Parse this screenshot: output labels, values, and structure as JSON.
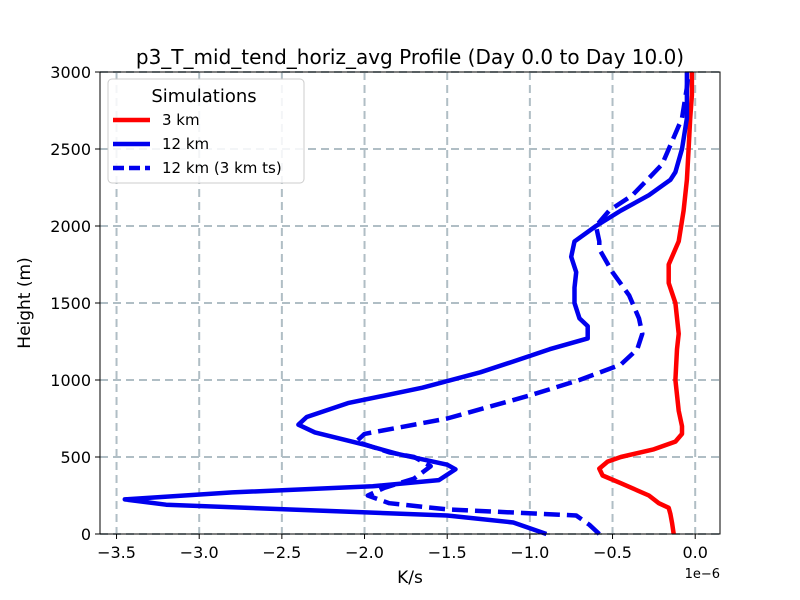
{
  "chart_data": {
    "type": "line",
    "title": "p3_T_mid_tend_horiz_avg Profile (Day 0.0 to Day 10.0)",
    "xlabel": "K/s",
    "ylabel": "Height (m)",
    "x_scale_label": "1e−6",
    "xlim": [
      -3.6,
      0.15
    ],
    "ylim": [
      0,
      3000
    ],
    "xticks": [
      -3.5,
      -3.0,
      -2.5,
      -2.0,
      -1.5,
      -1.0,
      -0.5,
      0.0
    ],
    "xtick_labels": [
      "−3.5",
      "−3.0",
      "−2.5",
      "−2.0",
      "−1.5",
      "−1.0",
      "−0.5",
      "0.0"
    ],
    "yticks": [
      0,
      500,
      1000,
      1500,
      2000,
      2500,
      3000
    ],
    "ytick_labels": [
      "0",
      "500",
      "1000",
      "1500",
      "2000",
      "2500",
      "3000"
    ],
    "grid": true,
    "legend": {
      "title": "Simulations",
      "position": "upper-left"
    },
    "series": [
      {
        "name": "3 km",
        "color": "#ff0000",
        "style": "solid",
        "points": [
          [
            -0.13,
            0
          ],
          [
            -0.14,
            70
          ],
          [
            -0.15,
            130
          ],
          [
            -0.16,
            170
          ],
          [
            -0.22,
            200
          ],
          [
            -0.28,
            250
          ],
          [
            -0.45,
            330
          ],
          [
            -0.56,
            380
          ],
          [
            -0.58,
            425
          ],
          [
            -0.53,
            470
          ],
          [
            -0.45,
            500
          ],
          [
            -0.25,
            550
          ],
          [
            -0.12,
            600
          ],
          [
            -0.08,
            650
          ],
          [
            -0.08,
            700
          ],
          [
            -0.1,
            800
          ],
          [
            -0.12,
            1000
          ],
          [
            -0.11,
            1200
          ],
          [
            -0.1,
            1300
          ],
          [
            -0.12,
            1500
          ],
          [
            -0.16,
            1630
          ],
          [
            -0.16,
            1750
          ],
          [
            -0.1,
            1900
          ],
          [
            -0.07,
            2100
          ],
          [
            -0.05,
            2300
          ],
          [
            -0.04,
            2500
          ],
          [
            -0.03,
            2700
          ],
          [
            -0.02,
            2850
          ],
          [
            -0.02,
            3000
          ]
        ]
      },
      {
        "name": "12 km",
        "color": "#0000ee",
        "style": "solid",
        "points": [
          [
            -0.9,
            0
          ],
          [
            -1.1,
            75
          ],
          [
            -1.5,
            120
          ],
          [
            -3.2,
            190
          ],
          [
            -3.45,
            225
          ],
          [
            -2.8,
            270
          ],
          [
            -1.95,
            310
          ],
          [
            -1.55,
            350
          ],
          [
            -1.45,
            420
          ],
          [
            -1.5,
            450
          ],
          [
            -1.8,
            520
          ],
          [
            -2.0,
            580
          ],
          [
            -2.3,
            660
          ],
          [
            -2.4,
            710
          ],
          [
            -2.35,
            760
          ],
          [
            -2.1,
            850
          ],
          [
            -1.65,
            950
          ],
          [
            -1.3,
            1050
          ],
          [
            -1.1,
            1120
          ],
          [
            -0.88,
            1200
          ],
          [
            -0.65,
            1270
          ],
          [
            -0.65,
            1350
          ],
          [
            -0.7,
            1400
          ],
          [
            -0.73,
            1500
          ],
          [
            -0.73,
            1600
          ],
          [
            -0.72,
            1700
          ],
          [
            -0.75,
            1800
          ],
          [
            -0.73,
            1900
          ],
          [
            -0.6,
            2000
          ],
          [
            -0.45,
            2100
          ],
          [
            -0.28,
            2200
          ],
          [
            -0.15,
            2300
          ],
          [
            -0.12,
            2350
          ],
          [
            -0.08,
            2500
          ],
          [
            -0.05,
            2700
          ],
          [
            -0.05,
            3000
          ]
        ]
      },
      {
        "name": "12 km (3 km ts)",
        "color": "#0000ee",
        "style": "dashed",
        "points": [
          [
            -0.58,
            0
          ],
          [
            -0.64,
            60
          ],
          [
            -0.72,
            120
          ],
          [
            -1.5,
            160
          ],
          [
            -1.85,
            200
          ],
          [
            -1.98,
            250
          ],
          [
            -1.88,
            300
          ],
          [
            -1.7,
            360
          ],
          [
            -1.6,
            440
          ],
          [
            -1.7,
            500
          ],
          [
            -1.85,
            530
          ],
          [
            -2.05,
            600
          ],
          [
            -2.0,
            650
          ],
          [
            -1.5,
            750
          ],
          [
            -1.0,
            900
          ],
          [
            -0.7,
            1000
          ],
          [
            -0.45,
            1100
          ],
          [
            -0.35,
            1200
          ],
          [
            -0.32,
            1300
          ],
          [
            -0.34,
            1400
          ],
          [
            -0.4,
            1550
          ],
          [
            -0.5,
            1700
          ],
          [
            -0.58,
            1850
          ],
          [
            -0.58,
            1900
          ],
          [
            -0.6,
            2000
          ],
          [
            -0.52,
            2100
          ],
          [
            -0.38,
            2200
          ],
          [
            -0.2,
            2400
          ],
          [
            -0.14,
            2550
          ],
          [
            -0.08,
            2700
          ],
          [
            -0.05,
            2900
          ],
          [
            -0.04,
            3000
          ]
        ]
      }
    ]
  }
}
